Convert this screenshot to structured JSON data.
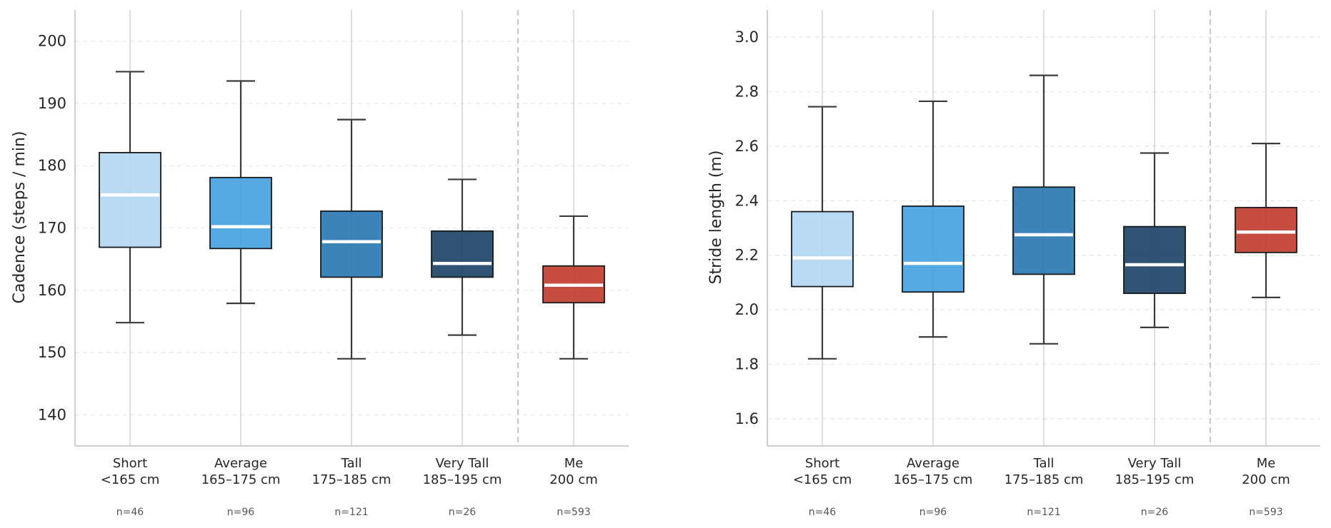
{
  "chart_data": [
    {
      "type": "box",
      "ylabel": "Cadence (steps / min)",
      "ylim": [
        135,
        205
      ],
      "yticks": [
        140,
        150,
        160,
        170,
        180,
        190,
        200
      ],
      "grid": "horizontal-dashed",
      "divider_after_index": 3,
      "categories": [
        {
          "label": "Short",
          "sublabel": "<165 cm",
          "n": "n=46",
          "color": "#b0d6f1",
          "whisker_low": 154.8,
          "q1": 166.9,
          "median": 175.3,
          "q3": 182.1,
          "whisker_high": 195.1
        },
        {
          "label": "Average",
          "sublabel": "165–175 cm",
          "n": "n=96",
          "color": "#42a1e1",
          "whisker_low": 157.9,
          "q1": 166.7,
          "median": 170.2,
          "q3": 178.1,
          "whisker_high": 193.6
        },
        {
          "label": "Tall",
          "sublabel": "175–185 cm",
          "n": "n=121",
          "color": "#2775b1",
          "whisker_low": 149.0,
          "q1": 162.1,
          "median": 167.8,
          "q3": 172.7,
          "whisker_high": 187.4
        },
        {
          "label": "Very Tall",
          "sublabel": "185–195 cm",
          "n": "n=26",
          "color": "#193f64",
          "whisker_low": 152.8,
          "q1": 162.1,
          "median": 164.3,
          "q3": 169.5,
          "whisker_high": 177.8
        },
        {
          "label": "Me",
          "sublabel": "200 cm",
          "n": "n=593",
          "color": "#c23a2c",
          "whisker_low": 149.0,
          "q1": 158.0,
          "median": 160.8,
          "q3": 163.9,
          "whisker_high": 171.9
        }
      ]
    },
    {
      "type": "box",
      "ylabel": "Stride length (m)",
      "ylim": [
        1.5,
        3.1
      ],
      "yticks": [
        1.6,
        1.8,
        2.0,
        2.2,
        2.4,
        2.6,
        2.8,
        3.0
      ],
      "grid": "horizontal-dashed",
      "divider_after_index": 3,
      "categories": [
        {
          "label": "Short",
          "sublabel": "<165 cm",
          "n": "n=46",
          "color": "#b0d6f1",
          "whisker_low": 1.82,
          "q1": 2.085,
          "median": 2.19,
          "q3": 2.36,
          "whisker_high": 2.745
        },
        {
          "label": "Average",
          "sublabel": "165–175 cm",
          "n": "n=96",
          "color": "#42a1e1",
          "whisker_low": 1.9,
          "q1": 2.065,
          "median": 2.17,
          "q3": 2.38,
          "whisker_high": 2.765
        },
        {
          "label": "Tall",
          "sublabel": "175–185 cm",
          "n": "n=121",
          "color": "#2775b1",
          "whisker_low": 1.875,
          "q1": 2.13,
          "median": 2.275,
          "q3": 2.45,
          "whisker_high": 2.86
        },
        {
          "label": "Very Tall",
          "sublabel": "185–195 cm",
          "n": "n=26",
          "color": "#193f64",
          "whisker_low": 1.935,
          "q1": 2.06,
          "median": 2.165,
          "q3": 2.305,
          "whisker_high": 2.575
        },
        {
          "label": "Me",
          "sublabel": "200 cm",
          "n": "n=593",
          "color": "#c23a2c",
          "whisker_low": 2.045,
          "q1": 2.21,
          "median": 2.285,
          "q3": 2.375,
          "whisker_high": 2.61
        }
      ]
    }
  ]
}
